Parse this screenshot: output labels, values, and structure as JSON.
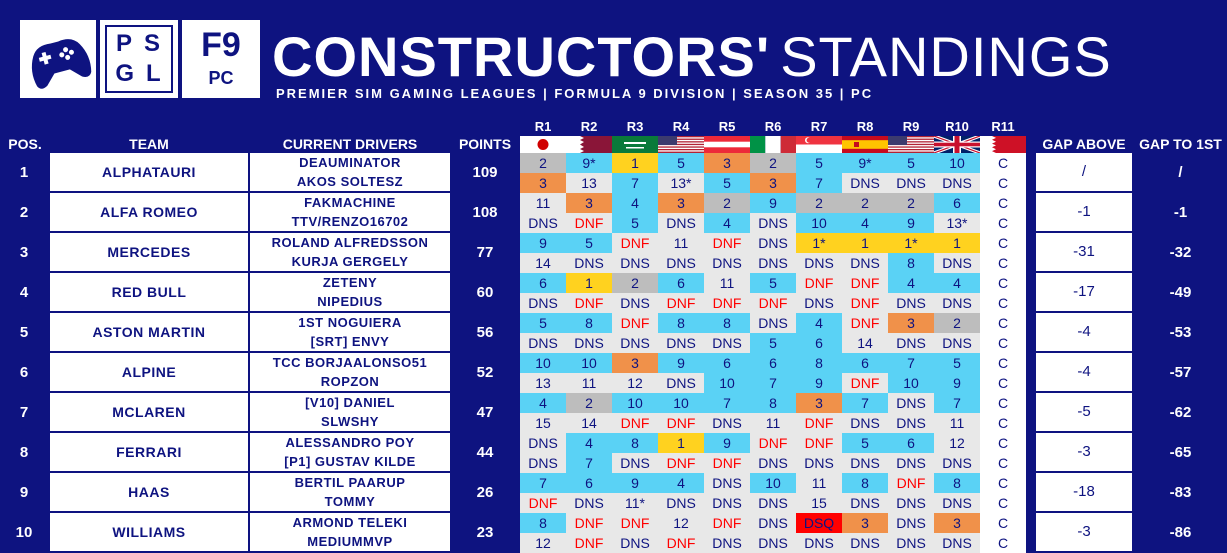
{
  "header": {
    "logo_line1": "PS",
    "logo_line2": "GL",
    "f9_top": "F9",
    "f9_bottom": "PC",
    "title_bold": "CONSTRUCTORS'",
    "title_light": "STANDINGS",
    "subtitle": "PREMIER SIM GAMING LEAGUES | FORMULA 9 DIVISION | SEASON 35 | PC"
  },
  "columns": {
    "pos": "POS.",
    "team": "TEAM",
    "drivers": "CURRENT DRIVERS",
    "points": "POINTS",
    "gap_above": "GAP ABOVE",
    "gap_to_first": "GAP TO 1ST"
  },
  "rounds": [
    "R1",
    "R2",
    "R3",
    "R4",
    "R5",
    "R6",
    "R7",
    "R8",
    "R9",
    "R10",
    "R11"
  ],
  "flags": [
    "japan-flag",
    "qatar-flag",
    "saudi-arabia-flag",
    "usa-flag",
    "austria-flag",
    "italy-flag",
    "singapore-flag",
    "spain-flag",
    "usa-flag",
    "united-kingdom-flag",
    "bahrain-flag"
  ],
  "colors": {
    "background": "#0e1380",
    "white": "#ffffff",
    "light_gray": "#e8e8e8",
    "win_gold": "#ffd21f",
    "podium_silver": "#bdbdbd",
    "podium_bronze": "#f0914a",
    "points_blue": "#5ad2f5",
    "dnf_red_text": "#ff0000",
    "dsq_red": "#ff0000"
  },
  "legend_codes": {
    "g": "#ffd21f",
    "s": "#bdbdbd",
    "b": "#f0914a",
    "p": "#5ad2f5",
    "n": "#e8e8e8",
    "w": "#ffffff",
    "x": "#ff0000"
  },
  "rows": [
    {
      "pos": "1",
      "team": "ALPHATAURI",
      "drivers": [
        "DEAUMINATOR",
        "AKOS SOLTESZ"
      ],
      "points": "109",
      "gap_above": "/",
      "gap_first": "/",
      "results": [
        [
          [
            "2",
            "s"
          ],
          [
            "9*",
            "p"
          ],
          [
            "1",
            "g"
          ],
          [
            "5",
            "p"
          ],
          [
            "3",
            "b"
          ],
          [
            "2",
            "s"
          ],
          [
            "5",
            "p"
          ],
          [
            "9*",
            "p"
          ],
          [
            "5",
            "p"
          ],
          [
            "10",
            "p"
          ],
          [
            "C",
            "w"
          ]
        ],
        [
          [
            "3",
            "b"
          ],
          [
            "13",
            "n"
          ],
          [
            "7",
            "p"
          ],
          [
            "13*",
            "n"
          ],
          [
            "5",
            "p"
          ],
          [
            "3",
            "b"
          ],
          [
            "7",
            "p"
          ],
          [
            "DNS",
            "n"
          ],
          [
            "DNS",
            "n"
          ],
          [
            "DNS",
            "n"
          ],
          [
            "C",
            "w"
          ]
        ]
      ]
    },
    {
      "pos": "2",
      "team": "ALFA ROMEO",
      "drivers": [
        "FAKMACHINE",
        "TTV/RENZO16702"
      ],
      "points": "108",
      "gap_above": "-1",
      "gap_first": "-1",
      "results": [
        [
          [
            "11",
            "n"
          ],
          [
            "3",
            "b"
          ],
          [
            "4",
            "p"
          ],
          [
            "3",
            "b"
          ],
          [
            "2",
            "s"
          ],
          [
            "9",
            "p"
          ],
          [
            "2",
            "s"
          ],
          [
            "2",
            "s"
          ],
          [
            "2",
            "s"
          ],
          [
            "6",
            "p"
          ],
          [
            "C",
            "w"
          ]
        ],
        [
          [
            "DNS",
            "n"
          ],
          [
            "DNF",
            "n"
          ],
          [
            "5",
            "p"
          ],
          [
            "DNS",
            "n"
          ],
          [
            "4",
            "p"
          ],
          [
            "DNS",
            "n"
          ],
          [
            "10",
            "p"
          ],
          [
            "4",
            "p"
          ],
          [
            "9",
            "p"
          ],
          [
            "13*",
            "n"
          ],
          [
            "C",
            "w"
          ]
        ]
      ]
    },
    {
      "pos": "3",
      "team": "MERCEDES",
      "drivers": [
        "ROLAND ALFREDSSON",
        "KURJA GERGELY"
      ],
      "points": "77",
      "gap_above": "-31",
      "gap_first": "-32",
      "results": [
        [
          [
            "9",
            "p"
          ],
          [
            "5",
            "p"
          ],
          [
            "DNF",
            "n"
          ],
          [
            "11",
            "n"
          ],
          [
            "DNF",
            "n"
          ],
          [
            "DNS",
            "n"
          ],
          [
            "1*",
            "g"
          ],
          [
            "1",
            "g"
          ],
          [
            "1*",
            "g"
          ],
          [
            "1",
            "g"
          ],
          [
            "C",
            "w"
          ]
        ],
        [
          [
            "14",
            "n"
          ],
          [
            "DNS",
            "n"
          ],
          [
            "DNS",
            "n"
          ],
          [
            "DNS",
            "n"
          ],
          [
            "DNS",
            "n"
          ],
          [
            "DNS",
            "n"
          ],
          [
            "DNS",
            "n"
          ],
          [
            "DNS",
            "n"
          ],
          [
            "8",
            "p"
          ],
          [
            "DNS",
            "n"
          ],
          [
            "C",
            "w"
          ]
        ]
      ]
    },
    {
      "pos": "4",
      "team": "RED BULL",
      "drivers": [
        "ZETENY",
        "NIPEDIUS"
      ],
      "points": "60",
      "gap_above": "-17",
      "gap_first": "-49",
      "results": [
        [
          [
            "6",
            "p"
          ],
          [
            "1",
            "g"
          ],
          [
            "2",
            "s"
          ],
          [
            "6",
            "p"
          ],
          [
            "11",
            "n"
          ],
          [
            "5",
            "p"
          ],
          [
            "DNF",
            "n"
          ],
          [
            "DNF",
            "n"
          ],
          [
            "4",
            "p"
          ],
          [
            "4",
            "p"
          ],
          [
            "C",
            "w"
          ]
        ],
        [
          [
            "DNS",
            "n"
          ],
          [
            "DNF",
            "n"
          ],
          [
            "DNS",
            "n"
          ],
          [
            "DNF",
            "n"
          ],
          [
            "DNF",
            "n"
          ],
          [
            "DNF",
            "n"
          ],
          [
            "DNS",
            "n"
          ],
          [
            "DNF",
            "n"
          ],
          [
            "DNS",
            "n"
          ],
          [
            "DNS",
            "n"
          ],
          [
            "C",
            "w"
          ]
        ]
      ]
    },
    {
      "pos": "5",
      "team": "ASTON MARTIN",
      "drivers": [
        "1ST NOGUIERA",
        "[SRT] ENVY"
      ],
      "points": "56",
      "gap_above": "-4",
      "gap_first": "-53",
      "results": [
        [
          [
            "5",
            "p"
          ],
          [
            "8",
            "p"
          ],
          [
            "DNF",
            "n"
          ],
          [
            "8",
            "p"
          ],
          [
            "8",
            "p"
          ],
          [
            "DNS",
            "n"
          ],
          [
            "4",
            "p"
          ],
          [
            "DNF",
            "n"
          ],
          [
            "3",
            "b"
          ],
          [
            "2",
            "s"
          ],
          [
            "C",
            "w"
          ]
        ],
        [
          [
            "DNS",
            "n"
          ],
          [
            "DNS",
            "n"
          ],
          [
            "DNS",
            "n"
          ],
          [
            "DNS",
            "n"
          ],
          [
            "DNS",
            "n"
          ],
          [
            "5",
            "p"
          ],
          [
            "6",
            "p"
          ],
          [
            "14",
            "n"
          ],
          [
            "DNS",
            "n"
          ],
          [
            "DNS",
            "n"
          ],
          [
            "C",
            "w"
          ]
        ]
      ]
    },
    {
      "pos": "6",
      "team": "ALPINE",
      "drivers": [
        "TCC BORJAALONSO51",
        "ROPZON"
      ],
      "points": "52",
      "gap_above": "-4",
      "gap_first": "-57",
      "results": [
        [
          [
            "10",
            "p"
          ],
          [
            "10",
            "p"
          ],
          [
            "3",
            "b"
          ],
          [
            "9",
            "p"
          ],
          [
            "6",
            "p"
          ],
          [
            "6",
            "p"
          ],
          [
            "8",
            "p"
          ],
          [
            "6",
            "p"
          ],
          [
            "7",
            "p"
          ],
          [
            "5",
            "p"
          ],
          [
            "C",
            "w"
          ]
        ],
        [
          [
            "13",
            "n"
          ],
          [
            "11",
            "n"
          ],
          [
            "12",
            "n"
          ],
          [
            "DNS",
            "n"
          ],
          [
            "10",
            "p"
          ],
          [
            "7",
            "p"
          ],
          [
            "9",
            "p"
          ],
          [
            "DNF",
            "n"
          ],
          [
            "10",
            "p"
          ],
          [
            "9",
            "p"
          ],
          [
            "C",
            "w"
          ]
        ]
      ]
    },
    {
      "pos": "7",
      "team": "MCLAREN",
      "drivers": [
        "[V10] DANIEL",
        "SLWSHY"
      ],
      "points": "47",
      "gap_above": "-5",
      "gap_first": "-62",
      "results": [
        [
          [
            "4",
            "p"
          ],
          [
            "2",
            "s"
          ],
          [
            "10",
            "p"
          ],
          [
            "10",
            "p"
          ],
          [
            "7",
            "p"
          ],
          [
            "8",
            "p"
          ],
          [
            "3",
            "b"
          ],
          [
            "7",
            "p"
          ],
          [
            "DNS",
            "n"
          ],
          [
            "7",
            "p"
          ],
          [
            "C",
            "w"
          ]
        ],
        [
          [
            "15",
            "n"
          ],
          [
            "14",
            "n"
          ],
          [
            "DNF",
            "n"
          ],
          [
            "DNF",
            "n"
          ],
          [
            "DNS",
            "n"
          ],
          [
            "11",
            "n"
          ],
          [
            "DNF",
            "n"
          ],
          [
            "DNS",
            "n"
          ],
          [
            "DNS",
            "n"
          ],
          [
            "11",
            "n"
          ],
          [
            "C",
            "w"
          ]
        ]
      ]
    },
    {
      "pos": "8",
      "team": "FERRARI",
      "drivers": [
        "ALESSANDRO POY",
        "[P1] GUSTAV KILDE"
      ],
      "points": "44",
      "gap_above": "-3",
      "gap_first": "-65",
      "results": [
        [
          [
            "DNS",
            "n"
          ],
          [
            "4",
            "p"
          ],
          [
            "8",
            "p"
          ],
          [
            "1",
            "g"
          ],
          [
            "9",
            "p"
          ],
          [
            "DNF",
            "n"
          ],
          [
            "DNF",
            "n"
          ],
          [
            "5",
            "p"
          ],
          [
            "6",
            "p"
          ],
          [
            "12",
            "n"
          ],
          [
            "C",
            "w"
          ]
        ],
        [
          [
            "DNS",
            "n"
          ],
          [
            "7",
            "p"
          ],
          [
            "DNS",
            "n"
          ],
          [
            "DNF",
            "n"
          ],
          [
            "DNF",
            "n"
          ],
          [
            "DNS",
            "n"
          ],
          [
            "DNS",
            "n"
          ],
          [
            "DNS",
            "n"
          ],
          [
            "DNS",
            "n"
          ],
          [
            "DNS",
            "n"
          ],
          [
            "C",
            "w"
          ]
        ]
      ]
    },
    {
      "pos": "9",
      "team": "HAAS",
      "drivers": [
        "BERTIL PAARUP",
        "TOMMY"
      ],
      "points": "26",
      "gap_above": "-18",
      "gap_first": "-83",
      "results": [
        [
          [
            "7",
            "p"
          ],
          [
            "6",
            "p"
          ],
          [
            "9",
            "p"
          ],
          [
            "4",
            "p"
          ],
          [
            "DNS",
            "n"
          ],
          [
            "10",
            "p"
          ],
          [
            "11",
            "n"
          ],
          [
            "8",
            "p"
          ],
          [
            "DNF",
            "n"
          ],
          [
            "8",
            "p"
          ],
          [
            "C",
            "w"
          ]
        ],
        [
          [
            "DNF",
            "n"
          ],
          [
            "DNS",
            "n"
          ],
          [
            "11*",
            "n"
          ],
          [
            "DNS",
            "n"
          ],
          [
            "DNS",
            "n"
          ],
          [
            "DNS",
            "n"
          ],
          [
            "15",
            "n"
          ],
          [
            "DNS",
            "n"
          ],
          [
            "DNS",
            "n"
          ],
          [
            "DNS",
            "n"
          ],
          [
            "C",
            "w"
          ]
        ]
      ]
    },
    {
      "pos": "10",
      "team": "WILLIAMS",
      "drivers": [
        "ARMOND TELEKI",
        "MEDIUMMVP"
      ],
      "points": "23",
      "gap_above": "-3",
      "gap_first": "-86",
      "results": [
        [
          [
            "8",
            "p"
          ],
          [
            "DNF",
            "n"
          ],
          [
            "DNF",
            "n"
          ],
          [
            "12",
            "n"
          ],
          [
            "DNF",
            "n"
          ],
          [
            "DNS",
            "n"
          ],
          [
            "DSQ",
            "x"
          ],
          [
            "3",
            "b"
          ],
          [
            "DNS",
            "n"
          ],
          [
            "3",
            "b"
          ],
          [
            "C",
            "w"
          ]
        ],
        [
          [
            "12",
            "n"
          ],
          [
            "DNF",
            "n"
          ],
          [
            "DNS",
            "n"
          ],
          [
            "DNF",
            "n"
          ],
          [
            "DNS",
            "n"
          ],
          [
            "DNS",
            "n"
          ],
          [
            "DNS",
            "n"
          ],
          [
            "DNS",
            "n"
          ],
          [
            "DNS",
            "n"
          ],
          [
            "DNS",
            "n"
          ],
          [
            "C",
            "w"
          ]
        ]
      ]
    }
  ]
}
